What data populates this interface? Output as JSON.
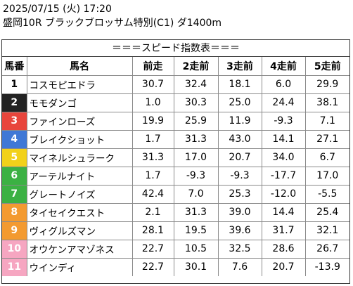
{
  "header": {
    "date_line": "2025/07/15 (火) 17:20",
    "race_line": "盛岡10R ブラックブロッサム特別(C1) ダ1400m"
  },
  "subtitle": "＝＝＝スピード指数表＝＝＝",
  "columns": [
    "馬番",
    "馬名",
    "前走",
    "2走前",
    "3走前",
    "4走前",
    "5走前"
  ],
  "gate_colors": [
    {
      "bg": "#ffffff",
      "fg": "#000000"
    },
    {
      "bg": "#222222",
      "fg": "#ffffff"
    },
    {
      "bg": "#e8453c",
      "fg": "#ffffff"
    },
    {
      "bg": "#3f78d6",
      "fg": "#ffffff"
    },
    {
      "bg": "#f2d11a",
      "fg": "#ffffff"
    },
    {
      "bg": "#3bb143",
      "fg": "#ffffff"
    },
    {
      "bg": "#f39a30",
      "fg": "#ffffff"
    },
    {
      "bg": "#f6a6c1",
      "fg": "#ffffff"
    }
  ],
  "rows": [
    {
      "num": "1",
      "name": "コスモピエドラ",
      "v": [
        "30.7",
        "32.4",
        "18.1",
        "6.0",
        "29.9"
      ],
      "gate": 0
    },
    {
      "num": "2",
      "name": "モモダンゴ",
      "v": [
        "1.0",
        "30.3",
        "25.0",
        "24.4",
        "38.1"
      ],
      "gate": 1
    },
    {
      "num": "3",
      "name": "ファインローズ",
      "v": [
        "19.9",
        "25.9",
        "11.9",
        "-9.3",
        "7.1"
      ],
      "gate": 2
    },
    {
      "num": "4",
      "name": "ブレイクショット",
      "v": [
        "1.7",
        "31.3",
        "43.0",
        "14.1",
        "27.1"
      ],
      "gate": 3
    },
    {
      "num": "5",
      "name": "マイネルシュラーク",
      "v": [
        "31.3",
        "17.0",
        "20.7",
        "34.0",
        "6.7"
      ],
      "gate": 4
    },
    {
      "num": "6",
      "name": "アーテルナイト",
      "v": [
        "1.7",
        "-9.3",
        "-9.3",
        "-17.7",
        "17.0"
      ],
      "gate": 5
    },
    {
      "num": "7",
      "name": "グレートノイズ",
      "v": [
        "42.4",
        "7.0",
        "25.3",
        "-12.0",
        "-5.5"
      ],
      "gate": 5
    },
    {
      "num": "8",
      "name": "タイセイクエスト",
      "v": [
        "2.1",
        "31.3",
        "39.0",
        "14.4",
        "25.4"
      ],
      "gate": 6
    },
    {
      "num": "9",
      "name": "ヴィグルズマン",
      "v": [
        "28.1",
        "19.5",
        "39.6",
        "31.7",
        "32.1"
      ],
      "gate": 6
    },
    {
      "num": "10",
      "name": "オウケンアマゾネス",
      "v": [
        "22.7",
        "10.5",
        "32.5",
        "28.6",
        "26.7"
      ],
      "gate": 7
    },
    {
      "num": "11",
      "name": "ウインディ",
      "v": [
        "22.7",
        "30.1",
        "7.6",
        "20.7",
        "-13.9"
      ],
      "gate": 7
    }
  ]
}
